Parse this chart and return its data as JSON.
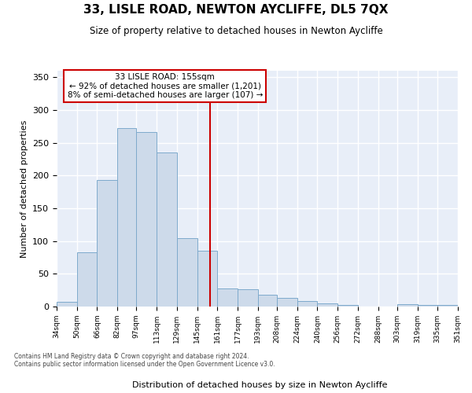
{
  "title": "33, LISLE ROAD, NEWTON AYCLIFFE, DL5 7QX",
  "subtitle": "Size of property relative to detached houses in Newton Aycliffe",
  "xlabel": "Distribution of detached houses by size in Newton Aycliffe",
  "ylabel": "Number of detached properties",
  "bar_color": "#cddaea",
  "bar_edge_color": "#7eaacc",
  "bg_color": "#e8eef8",
  "grid_color": "#ffffff",
  "vline_x": 155,
  "vline_color": "#cc0000",
  "annotation_text": "33 LISLE ROAD: 155sqm\n← 92% of detached houses are smaller (1,201)\n8% of semi-detached houses are larger (107) →",
  "annotation_box_color": "#cc0000",
  "bins": [
    34,
    50,
    66,
    82,
    97,
    113,
    129,
    145,
    161,
    177,
    193,
    208,
    224,
    240,
    256,
    272,
    288,
    303,
    319,
    335,
    351
  ],
  "counts": [
    7,
    83,
    193,
    272,
    267,
    235,
    105,
    85,
    28,
    27,
    18,
    13,
    8,
    5,
    3,
    0,
    0,
    4,
    2,
    3
  ],
  "ylim": [
    0,
    360
  ],
  "yticks": [
    0,
    50,
    100,
    150,
    200,
    250,
    300,
    350
  ],
  "footer1": "Contains HM Land Registry data © Crown copyright and database right 2024.",
  "footer2": "Contains public sector information licensed under the Open Government Licence v3.0."
}
